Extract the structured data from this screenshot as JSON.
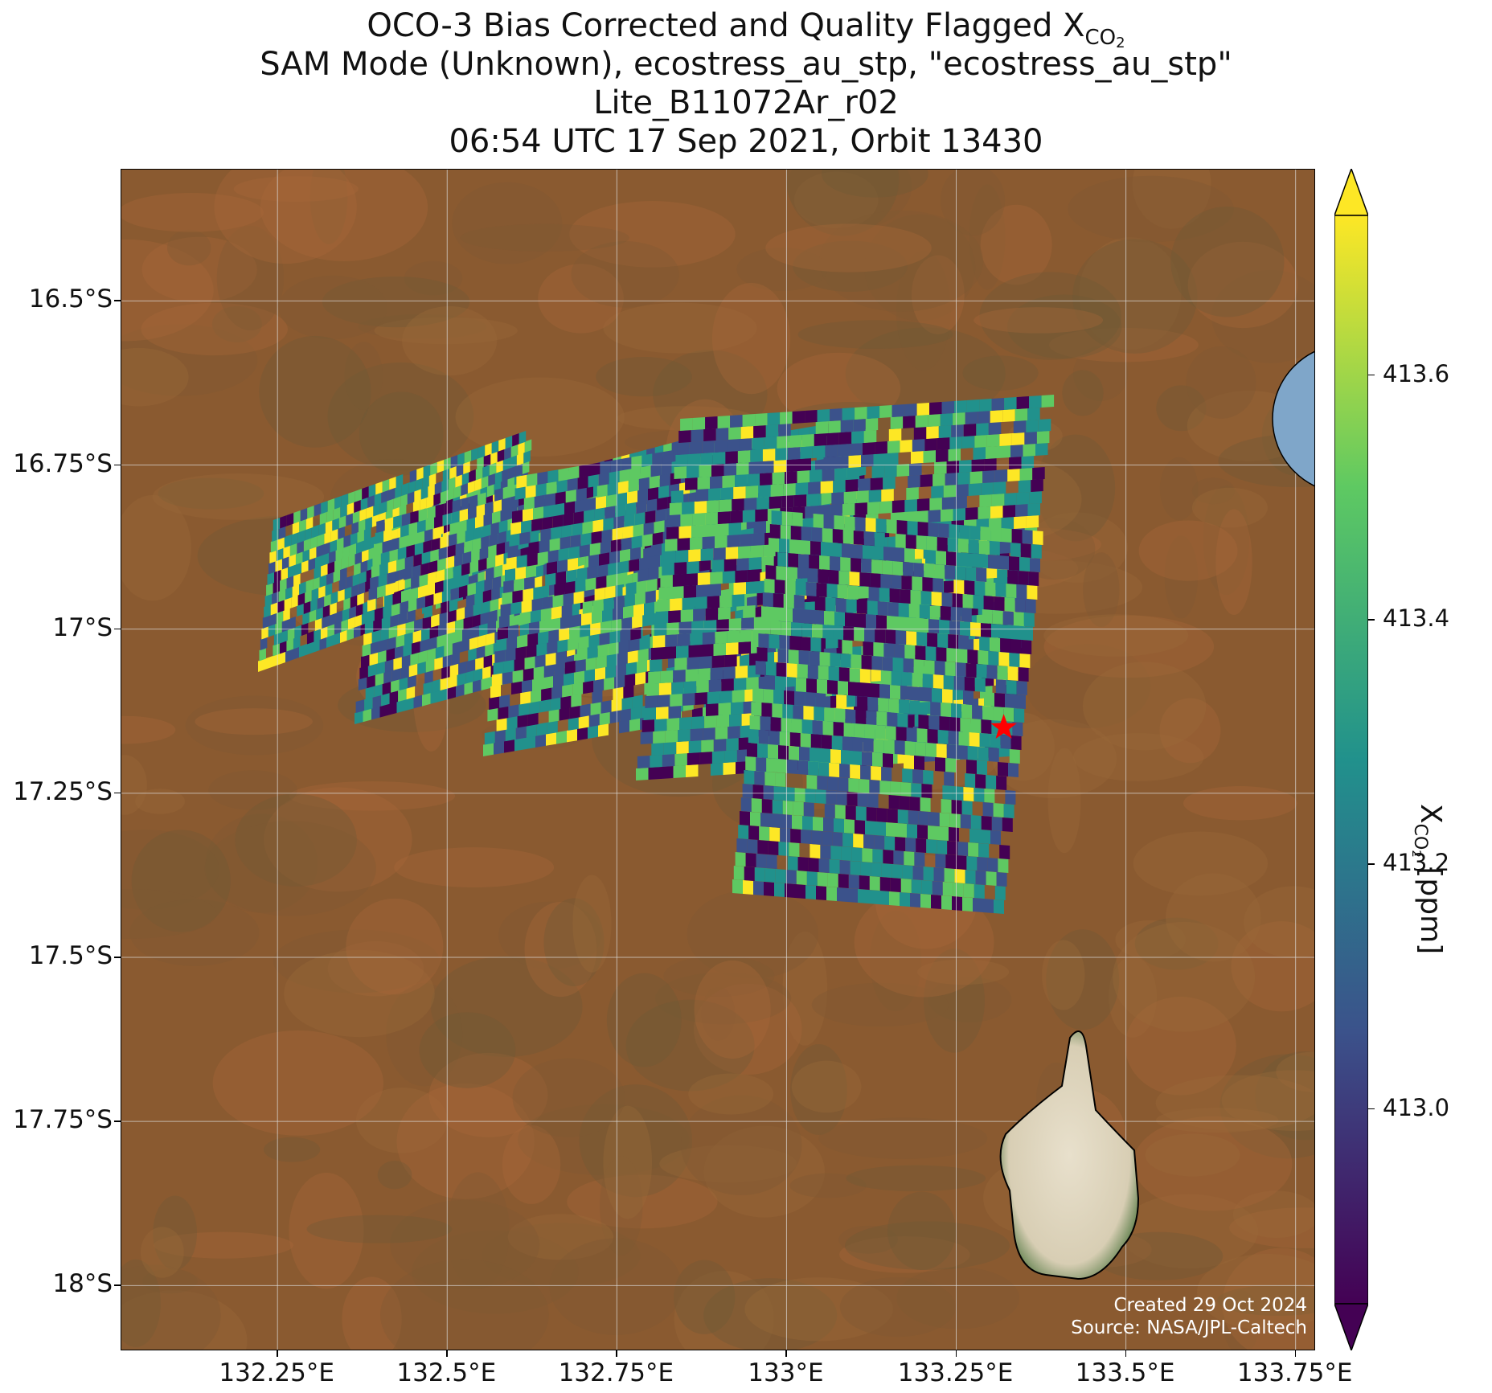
{
  "title": {
    "line1_prefix": "OCO-3 Bias Corrected and Quality Flagged X",
    "line1_sub": "CO",
    "line1_subsub": "2",
    "line2": "SAM Mode (Unknown), ecostress_au_stp, \"ecostress_au_stp\"",
    "line3": "Lite_B11072Ar_r02",
    "line4": "06:54 UTC 17 Sep 2021, Orbit 13430"
  },
  "map": {
    "lon_range": [
      132.02,
      133.78
    ],
    "lat_range": [
      -18.1,
      -16.3
    ],
    "lon_ticks": [
      "132.25°E",
      "132.5°E",
      "132.75°E",
      "133°E",
      "133.25°E",
      "133.5°E",
      "133.75°E"
    ],
    "lon_tick_values": [
      132.25,
      132.5,
      132.75,
      133.0,
      133.25,
      133.5,
      133.75
    ],
    "lat_ticks": [
      "16.5°S",
      "16.75°S",
      "17°S",
      "17.25°S",
      "17.5°S",
      "17.75°S",
      "18°S"
    ],
    "lat_tick_values": [
      -16.5,
      -16.75,
      -17.0,
      -17.25,
      -17.5,
      -17.75,
      -18.0
    ],
    "target_marker": {
      "lon": 133.32,
      "lat": -17.15,
      "color": "#ff0000"
    },
    "grid": true,
    "basemap_colors": [
      "#8a5a30",
      "#9a6a3a",
      "#7e5a34",
      "#a8683a",
      "#6e5a36"
    ]
  },
  "colorbar": {
    "label_prefix": "X",
    "label_sub": "CO",
    "label_subsub": "2",
    "label_suffix": " [ppm]",
    "ticks": [
      "413.6",
      "413.4",
      "413.2",
      "413.0"
    ],
    "tick_values": [
      413.6,
      413.4,
      413.2,
      413.0
    ],
    "range": [
      412.84,
      413.73
    ],
    "colormap": "viridis",
    "colors": [
      "#440154",
      "#3b528b",
      "#21918c",
      "#5ec962",
      "#fde725"
    ]
  },
  "credits": {
    "line1": "Created 29 Oct 2024",
    "line2": "Source: NASA/JPL-Caltech"
  }
}
